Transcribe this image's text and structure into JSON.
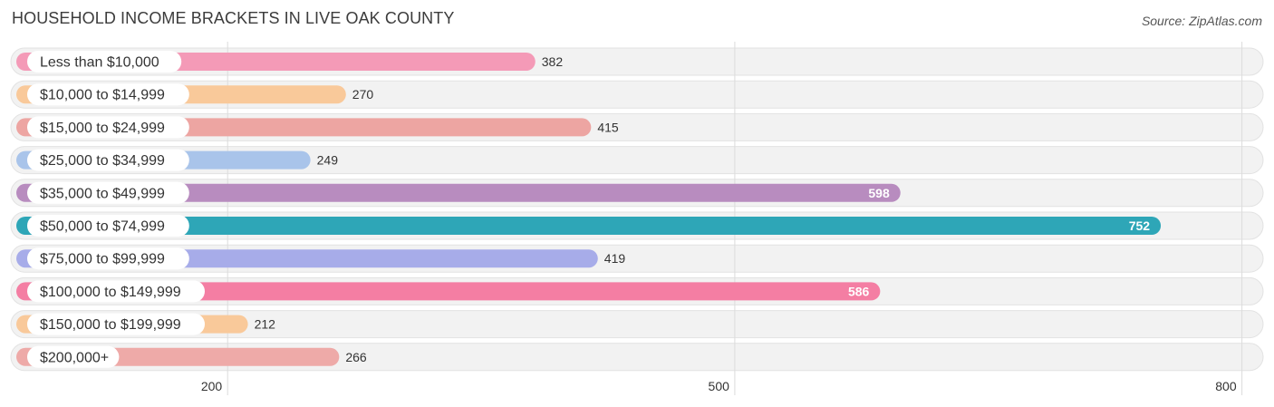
{
  "header": {
    "title": "HOUSEHOLD INCOME BRACKETS IN LIVE OAK COUNTY",
    "source": "Source: ZipAtlas.com"
  },
  "chart_data": {
    "type": "bar",
    "orientation": "horizontal",
    "categories": [
      "Less than $10,000",
      "$10,000 to $14,999",
      "$15,000 to $24,999",
      "$25,000 to $34,999",
      "$35,000 to $49,999",
      "$50,000 to $74,999",
      "$75,000 to $99,999",
      "$100,000 to $149,999",
      "$150,000 to $199,999",
      "$200,000+"
    ],
    "values": [
      382,
      270,
      415,
      249,
      598,
      752,
      419,
      586,
      212,
      266
    ],
    "value_labels": [
      "382",
      "270",
      "415",
      "249",
      "598",
      "752",
      "419",
      "586",
      "212",
      "266"
    ],
    "colors": [
      "#f49ab7",
      "#f9c99a",
      "#eda5a2",
      "#a9c4ea",
      "#b88cbf",
      "#2ea6b7",
      "#a7ace9",
      "#f47ea3",
      "#f9c99a",
      "#eeaaa8"
    ],
    "xlim": [
      75,
      812
    ],
    "xticks": [
      200,
      500,
      800
    ],
    "xtick_labels": [
      "200",
      "500",
      "800"
    ],
    "grid": true,
    "title": "HOUSEHOLD INCOME BRACKETS IN LIVE OAK COUNTY",
    "xlabel": "",
    "ylabel": ""
  }
}
